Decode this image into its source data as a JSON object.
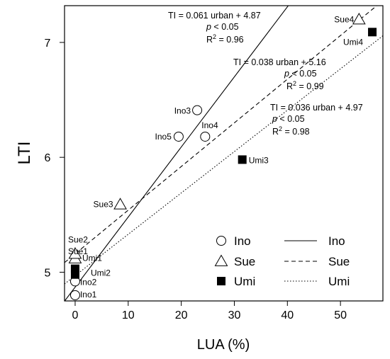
{
  "chart_data": {
    "type": "scatter",
    "xlabel": "LUA (%)",
    "ylabel": "LTI",
    "xlim": [
      -2,
      58
    ],
    "ylim": [
      4.75,
      7.32
    ],
    "xticks": [
      "0",
      "10",
      "20",
      "30",
      "40",
      "50"
    ],
    "yticks": [
      "5",
      "6",
      "7"
    ],
    "series": [
      {
        "name": "Ino",
        "marker": "open-circle",
        "line_style": "solid",
        "points": [
          {
            "label": "Ino1",
            "x": 0,
            "y": 4.8
          },
          {
            "label": "Ino2",
            "x": 0,
            "y": 4.92
          },
          {
            "label": "Ino3",
            "x": 23,
            "y": 6.41
          },
          {
            "label": "Ino4",
            "x": 24.5,
            "y": 6.18
          },
          {
            "label": "Ino5",
            "x": 19.5,
            "y": 6.18
          }
        ],
        "fit": {
          "slope": 0.061,
          "intercept": 4.87
        },
        "equation": "TI = 0.061 urban + 4.87",
        "p_text": "p < 0.05",
        "r2_text": "= 0.96"
      },
      {
        "name": "Sue",
        "marker": "open-triangle",
        "line_style": "dashed",
        "points": [
          {
            "label": "Sue1",
            "x": 0,
            "y": 5.12
          },
          {
            "label": "Sue2",
            "x": 0,
            "y": 5.16
          },
          {
            "label": "Sue3",
            "x": 8.5,
            "y": 5.59
          },
          {
            "label": "Sue4",
            "x": 53.5,
            "y": 7.2
          }
        ],
        "fit": {
          "slope": 0.038,
          "intercept": 5.16
        },
        "equation": "TI = 0.038 urban + 5.16",
        "p_text": "p < 0.05",
        "r2_text": "= 0.99"
      },
      {
        "name": "Umi",
        "marker": "filled-square",
        "line_style": "dotted",
        "points": [
          {
            "label": "Umi1",
            "x": 0,
            "y": 5.03
          },
          {
            "label": "Umi2",
            "x": 0,
            "y": 4.98
          },
          {
            "label": "Umi3",
            "x": 31.5,
            "y": 5.98
          },
          {
            "label": "Umi4",
            "x": 56,
            "y": 7.09
          }
        ],
        "fit": {
          "slope": 0.036,
          "intercept": 4.97
        },
        "equation": "TI = 0.036 urban + 4.97",
        "p_text": "p < 0.05",
        "r2_text": "= 0.98"
      }
    ],
    "legend_position": "bottom-right",
    "r2_symbol": "R",
    "r2_exp": "2"
  }
}
